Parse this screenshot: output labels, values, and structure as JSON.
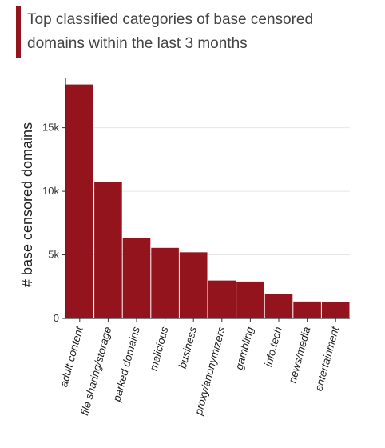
{
  "chart_data": {
    "type": "bar",
    "title": "Top classified categories of base censored domains within the last 3 months",
    "ylabel": "# base censored domains",
    "xlabel": "",
    "categories": [
      "adult content",
      "file sharing/storage",
      "parked domains",
      "malicious",
      "business",
      "proxy/anonymizers",
      "gambling",
      "info.tech",
      "news/media",
      "entertainment"
    ],
    "values": [
      18400,
      10700,
      6300,
      5550,
      5200,
      2980,
      2900,
      1950,
      1330,
      1320
    ],
    "ylim": [
      0,
      18500
    ],
    "yticks": [
      0,
      5000,
      10000,
      15000
    ],
    "ytick_labels": [
      "0",
      "5k",
      "10k",
      "15k"
    ],
    "grid": true,
    "legend": "none",
    "colors": {
      "bar": "#93141c",
      "accent": "#93141c",
      "grid": "#e6e6e6",
      "axis": "#333333"
    }
  }
}
